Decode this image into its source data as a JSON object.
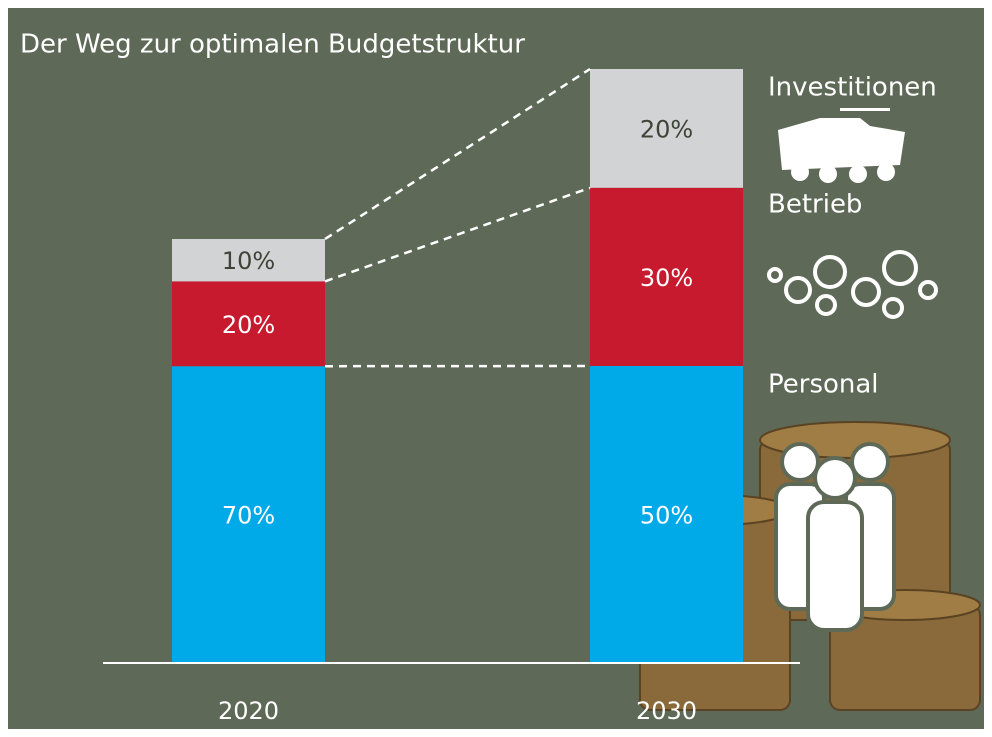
{
  "chart_data": {
    "type": "stacked_bar",
    "title": "Der Weg zur optimalen Budgetstruktur",
    "categories": [
      "2020",
      "2030"
    ],
    "series": [
      {
        "name": "Personal",
        "color": "#00a9e8",
        "values": [
          70,
          50
        ],
        "value_labels": [
          "70%",
          "50%"
        ]
      },
      {
        "name": "Betrieb",
        "color": "#c81a2e",
        "values": [
          20,
          30
        ],
        "value_labels": [
          "20%",
          "30%"
        ]
      },
      {
        "name": "Investitionen",
        "color": "#d2d3d5",
        "values": [
          10,
          20
        ],
        "value_labels": [
          "10%",
          "20%"
        ]
      }
    ]
  }
}
